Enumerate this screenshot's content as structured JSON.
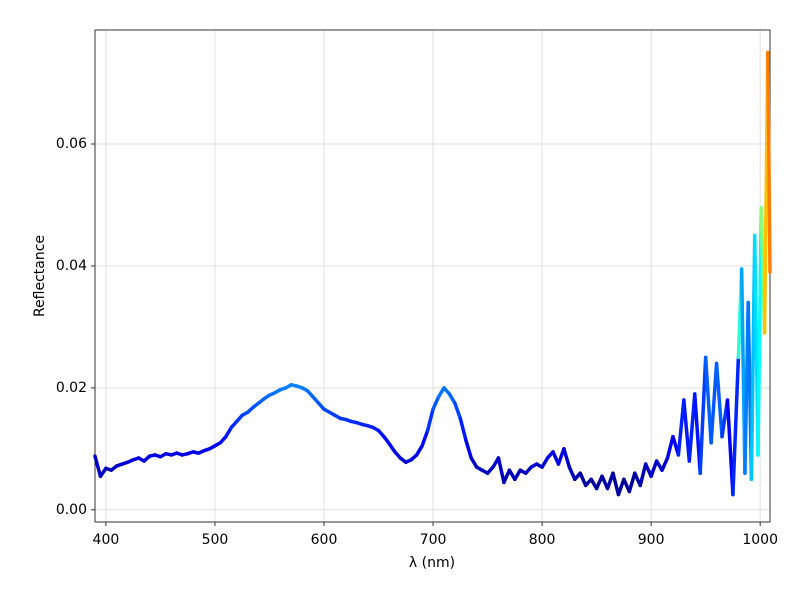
{
  "chart_data": {
    "type": "line",
    "xlabel": "λ (nm)",
    "ylabel": "Reflectance",
    "colormap": "jet",
    "clim": [
      0.002,
      0.075
    ],
    "grid": true,
    "xlim": [
      390,
      1009
    ],
    "ylim": [
      -0.002,
      0.0787
    ],
    "xticks": [
      400,
      500,
      600,
      700,
      800,
      900,
      1000
    ],
    "yticks": [
      {
        "value": 0,
        "label": "0.00"
      },
      0.02,
      0.04,
      0.06
    ],
    "series": [
      {
        "name": "Reflectance",
        "x": [
          390,
          395,
          400,
          405,
          410,
          415,
          420,
          425,
          430,
          435,
          440,
          445,
          450,
          455,
          460,
          465,
          470,
          475,
          480,
          485,
          490,
          495,
          500,
          505,
          510,
          515,
          520,
          525,
          530,
          535,
          540,
          545,
          550,
          555,
          560,
          565,
          570,
          575,
          580,
          585,
          590,
          595,
          600,
          605,
          610,
          615,
          620,
          625,
          630,
          635,
          640,
          645,
          650,
          655,
          660,
          665,
          670,
          675,
          680,
          685,
          690,
          695,
          700,
          705,
          710,
          715,
          720,
          725,
          730,
          735,
          740,
          745,
          750,
          755,
          760,
          765,
          770,
          775,
          780,
          785,
          790,
          795,
          800,
          805,
          810,
          815,
          820,
          825,
          830,
          835,
          840,
          845,
          850,
          855,
          860,
          865,
          870,
          875,
          880,
          885,
          890,
          895,
          900,
          905,
          910,
          915,
          920,
          925,
          930,
          935,
          940,
          945,
          950,
          955,
          960,
          965,
          970,
          975,
          980,
          983,
          986,
          989,
          992,
          995,
          998,
          1001,
          1004,
          1007,
          1009
        ],
        "values": [
          0.0088,
          0.0055,
          0.0068,
          0.0065,
          0.0072,
          0.0075,
          0.0078,
          0.0082,
          0.0085,
          0.008,
          0.0088,
          0.009,
          0.0087,
          0.0092,
          0.009,
          0.0093,
          0.009,
          0.0092,
          0.0095,
          0.0093,
          0.0097,
          0.01,
          0.0105,
          0.011,
          0.012,
          0.0135,
          0.0145,
          0.0155,
          0.016,
          0.0168,
          0.0175,
          0.0182,
          0.0188,
          0.0192,
          0.0197,
          0.02,
          0.0205,
          0.0203,
          0.02,
          0.0195,
          0.0185,
          0.0175,
          0.0165,
          0.016,
          0.0155,
          0.015,
          0.0148,
          0.0145,
          0.0143,
          0.014,
          0.0138,
          0.0135,
          0.013,
          0.012,
          0.0108,
          0.0095,
          0.0085,
          0.0078,
          0.0082,
          0.009,
          0.0105,
          0.013,
          0.0165,
          0.0185,
          0.02,
          0.019,
          0.0175,
          0.015,
          0.0115,
          0.0085,
          0.007,
          0.0065,
          0.006,
          0.007,
          0.0085,
          0.0045,
          0.0065,
          0.005,
          0.0065,
          0.006,
          0.007,
          0.0075,
          0.007,
          0.0085,
          0.0095,
          0.0075,
          0.01,
          0.007,
          0.005,
          0.006,
          0.004,
          0.005,
          0.0035,
          0.0055,
          0.0035,
          0.006,
          0.0025,
          0.005,
          0.003,
          0.006,
          0.004,
          0.0075,
          0.0055,
          0.008,
          0.0065,
          0.0085,
          0.012,
          0.009,
          0.018,
          0.008,
          0.019,
          0.006,
          0.025,
          0.011,
          0.024,
          0.012,
          0.018,
          0.0025,
          0.025,
          0.0395,
          0.006,
          0.034,
          0.005,
          0.045,
          0.009,
          0.0495,
          0.029,
          0.075,
          0.039
        ]
      }
    ]
  }
}
